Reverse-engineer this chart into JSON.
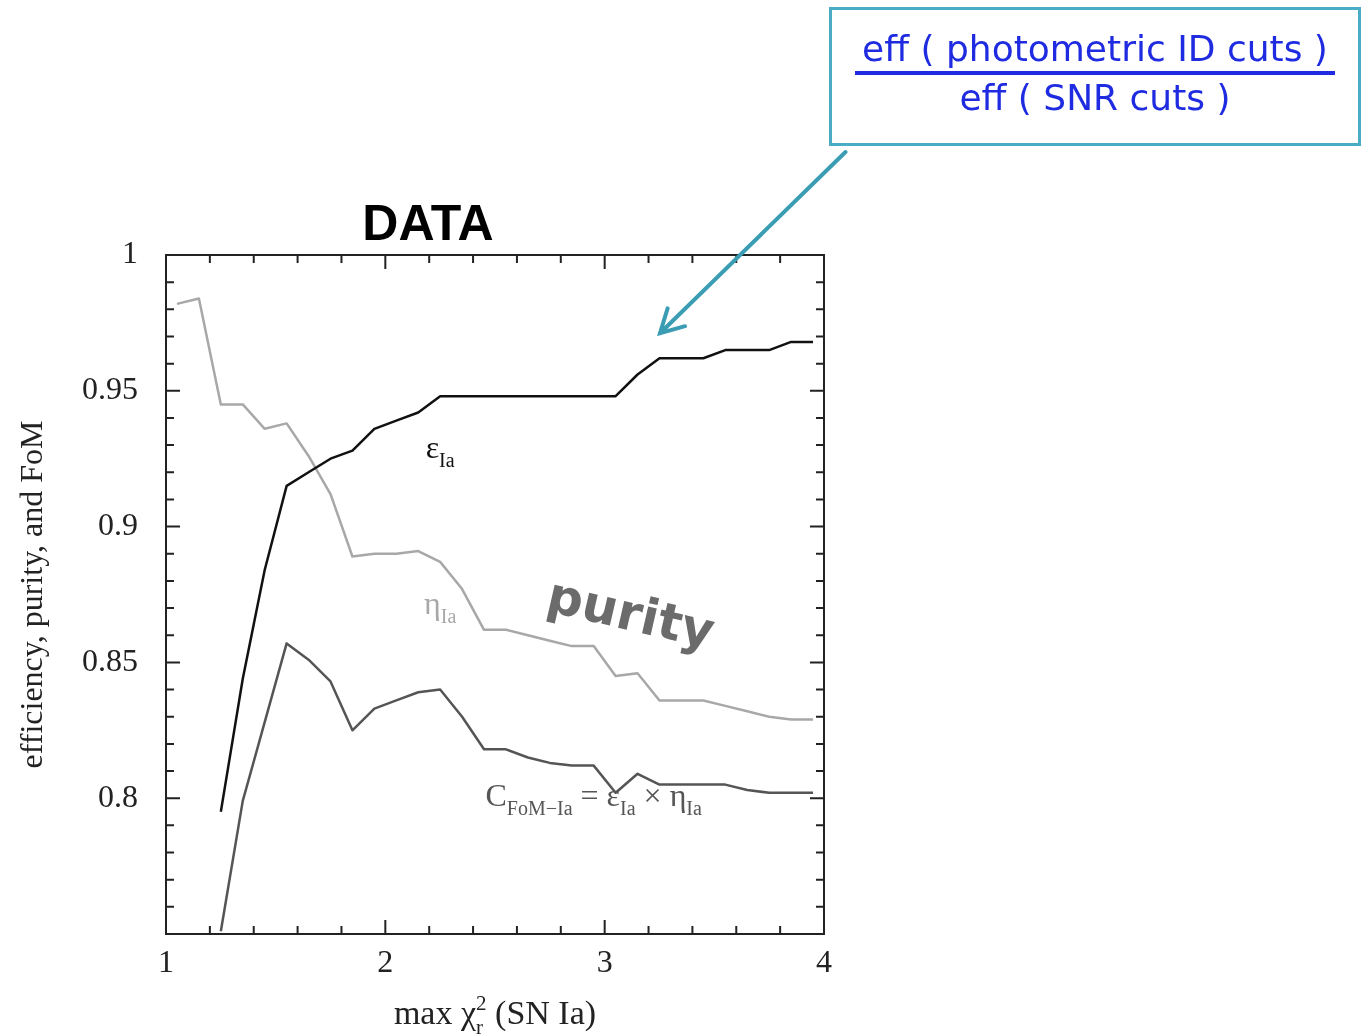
{
  "chart_data": {
    "type": "line",
    "title": "DATA",
    "xlabel": "max χ$_{r}$$^{2}$ (SN Ia)",
    "ylabel": "efficiency, purity, and FoM",
    "x": [
      1.05,
      1.15,
      1.25,
      1.35,
      1.45,
      1.55,
      1.65,
      1.75,
      1.85,
      1.95,
      2.05,
      2.15,
      2.25,
      2.35,
      2.45,
      2.55,
      2.65,
      2.75,
      2.85,
      2.95,
      3.05,
      3.15,
      3.25,
      3.35,
      3.45,
      3.55,
      3.65,
      3.75,
      3.85,
      3.95
    ],
    "series": [
      {
        "name": "ε$_{Ia}$",
        "color": "#111111",
        "values": [
          null,
          null,
          0.795,
          0.844,
          0.884,
          0.915,
          0.92,
          0.925,
          0.928,
          0.936,
          0.939,
          0.942,
          0.948,
          0.948,
          0.948,
          0.948,
          0.948,
          0.948,
          0.948,
          0.948,
          0.948,
          0.956,
          0.962,
          0.962,
          0.962,
          0.965,
          0.965,
          0.965,
          0.968,
          0.968
        ]
      },
      {
        "name": "η$_{Ia}$",
        "color": "#a8a8a8",
        "values": [
          0.982,
          0.984,
          0.945,
          0.945,
          0.936,
          0.938,
          0.926,
          0.912,
          0.889,
          0.89,
          0.89,
          0.891,
          0.887,
          0.877,
          0.862,
          0.862,
          0.86,
          0.858,
          0.856,
          0.856,
          0.845,
          0.846,
          0.836,
          0.836,
          0.836,
          0.834,
          0.832,
          0.83,
          0.829,
          0.829
        ]
      },
      {
        "name": "C$_{FoM−Ia}$ = ε$_{Ia}$ × η$_{Ia}$",
        "color": "#555555",
        "values": [
          null,
          null,
          0.751,
          0.799,
          0.828,
          0.857,
          0.851,
          0.843,
          0.825,
          0.833,
          0.836,
          0.839,
          0.84,
          0.83,
          0.818,
          0.818,
          0.815,
          0.813,
          0.812,
          0.812,
          0.802,
          0.809,
          0.805,
          0.805,
          0.805,
          0.805,
          0.803,
          0.802,
          0.802,
          0.802
        ]
      }
    ],
    "xlim": [
      1,
      4
    ],
    "xticks": [
      1,
      {
        "value": 1.2,
        "label": null
      },
      {
        "value": 1.4,
        "label": null
      },
      {
        "value": 1.6,
        "label": null
      },
      {
        "value": 1.8,
        "label": null
      },
      2,
      {
        "value": 2.2,
        "label": null
      },
      {
        "value": 2.4,
        "label": null
      },
      {
        "value": 2.6,
        "label": null
      },
      {
        "value": 2.8,
        "label": null
      },
      3,
      {
        "value": 3.2,
        "label": null
      },
      {
        "value": 3.4,
        "label": null
      },
      {
        "value": 3.6,
        "label": null
      },
      {
        "value": 3.8,
        "label": null
      },
      4
    ],
    "ylim": [
      0.75,
      1
    ],
    "yticks": [
      {
        "value": 0.76,
        "label": null
      },
      {
        "value": 0.77,
        "label": null
      },
      {
        "value": 0.78,
        "label": null
      },
      {
        "value": 0.79,
        "label": null
      },
      0.8,
      {
        "value": 0.81,
        "label": null
      },
      {
        "value": 0.82,
        "label": null
      },
      {
        "value": 0.83,
        "label": null
      },
      {
        "value": 0.84,
        "label": null
      },
      0.85,
      {
        "value": 0.86,
        "label": null
      },
      {
        "value": 0.87,
        "label": null
      },
      {
        "value": 0.88,
        "label": null
      },
      {
        "value": 0.89,
        "label": null
      },
      0.9,
      {
        "value": 0.91,
        "label": null
      },
      {
        "value": 0.92,
        "label": null
      },
      {
        "value": 0.93,
        "label": null
      },
      {
        "value": 0.94,
        "label": null
      },
      0.95,
      {
        "value": 0.96,
        "label": null
      },
      {
        "value": 0.97,
        "label": null
      },
      {
        "value": 0.98,
        "label": null
      },
      {
        "value": 0.99,
        "label": null
      },
      1
    ],
    "annotations": [
      "eff ( photometric ID cuts )\neff ( SNR cuts )",
      "purity"
    ],
    "marker": "none",
    "line_style": "solid",
    "legend": false,
    "grid": false
  }
}
